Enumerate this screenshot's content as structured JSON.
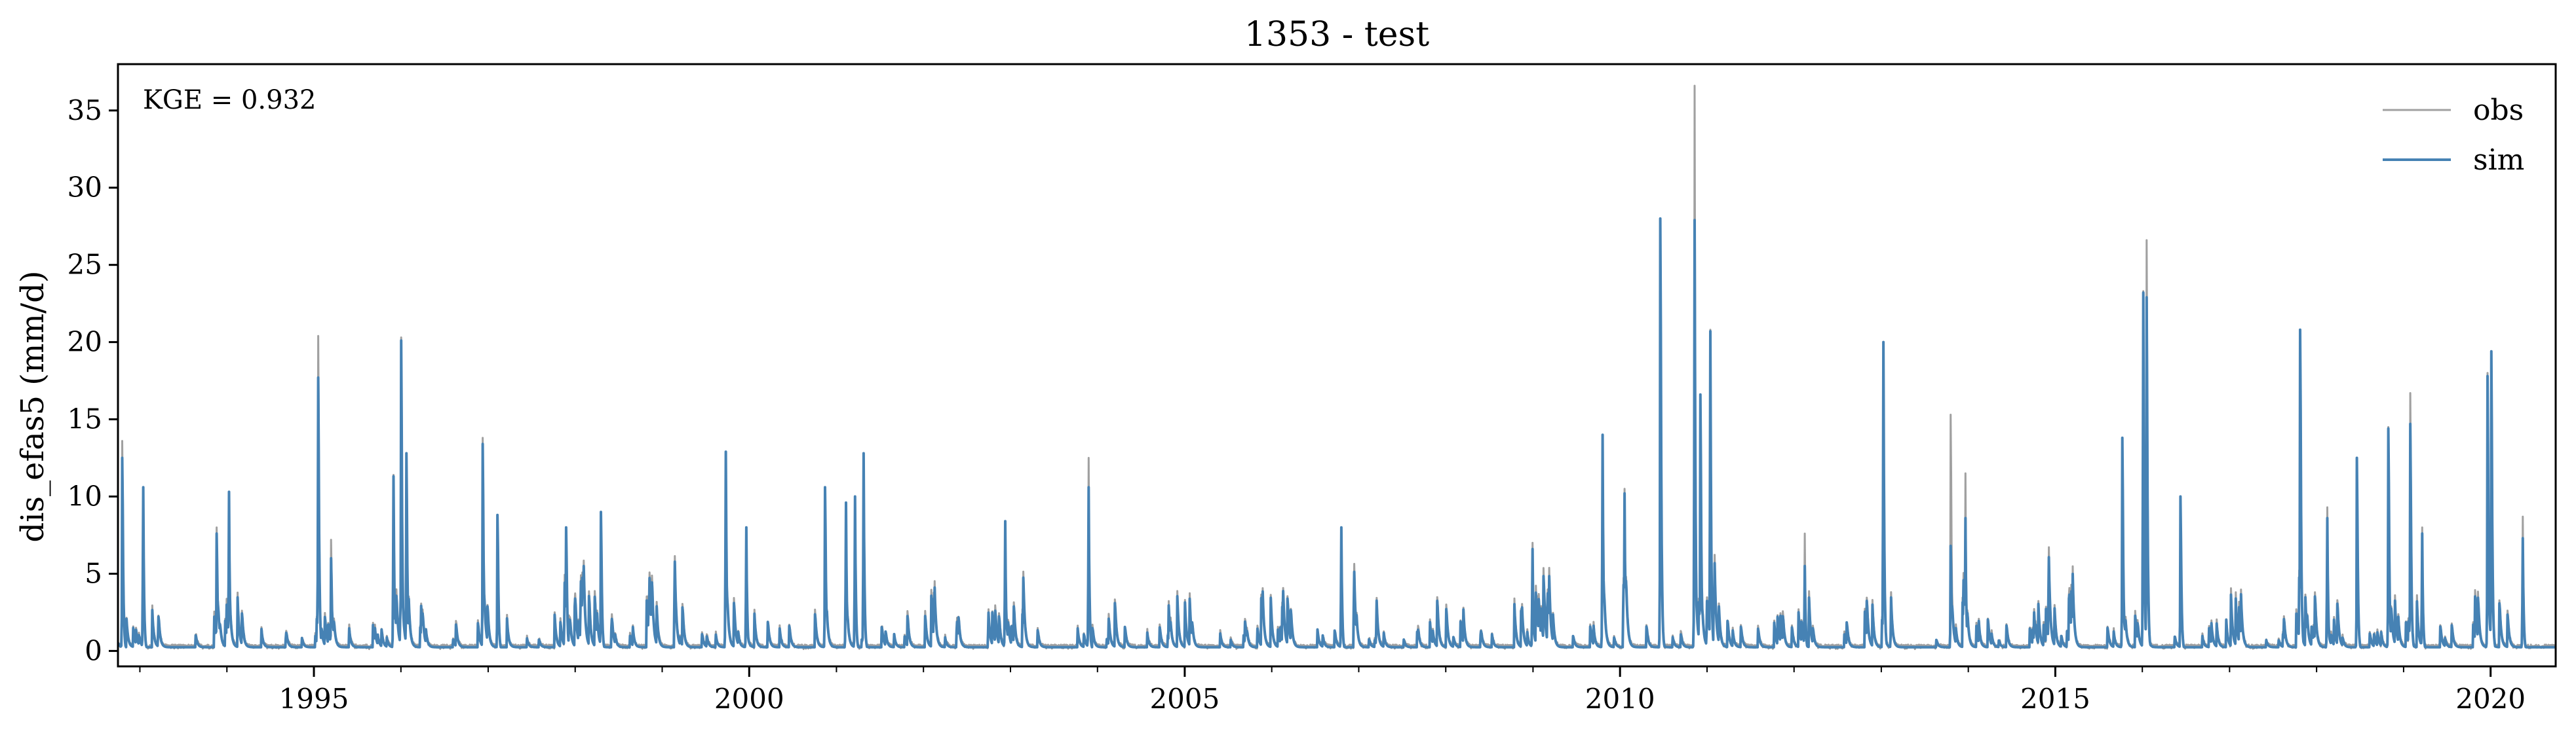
{
  "chart_data": {
    "type": "line",
    "title": "1353 - test",
    "xlabel": "",
    "ylabel": "dis_efas5 (mm/d)",
    "xlim": [
      "1992-10-01",
      "2020-09-30"
    ],
    "ylim": [
      -1,
      38
    ],
    "xticks": [
      {
        "label": "1995",
        "date": "1995-01-01"
      },
      {
        "label": "2000",
        "date": "2000-01-01"
      },
      {
        "label": "2005",
        "date": "2005-01-01"
      },
      {
        "label": "2010",
        "date": "2010-01-01"
      },
      {
        "label": "2015",
        "date": "2015-01-01"
      },
      {
        "label": "2020",
        "date": "2020-01-01"
      }
    ],
    "yticks": [
      0,
      5,
      10,
      15,
      20,
      25,
      30,
      35
    ],
    "annotation": "KGE = 0.932",
    "legend_position": "top-right",
    "grid": false,
    "series": [
      {
        "name": "obs",
        "color": "#a0a0a0",
        "peaks": [
          [
            "1992-10-20",
            13.6
          ],
          [
            "1993-01-15",
            10.6
          ],
          [
            "1993-11-20",
            8.0
          ],
          [
            "1994-01-10",
            10.3
          ],
          [
            "1995-01-20",
            20.4
          ],
          [
            "1995-03-15",
            7.2
          ],
          [
            "1995-12-01",
            11.4
          ],
          [
            "1996-01-03",
            20.3
          ],
          [
            "1996-01-25",
            12.8
          ],
          [
            "1996-12-10",
            13.8
          ],
          [
            "1997-02-10",
            8.8
          ],
          [
            "1997-11-25",
            8.0
          ],
          [
            "1998-04-20",
            9.0
          ],
          [
            "1999-09-25",
            12.9
          ],
          [
            "1999-12-20",
            8.0
          ],
          [
            "2000-11-15",
            10.6
          ],
          [
            "2001-02-10",
            9.6
          ],
          [
            "2001-03-20",
            10.0
          ],
          [
            "2001-04-25",
            12.8
          ],
          [
            "2002-12-10",
            8.4
          ],
          [
            "2003-11-25",
            12.5
          ],
          [
            "2006-10-20",
            8.0
          ],
          [
            "2008-12-30",
            7.0
          ],
          [
            "2009-10-20",
            14.0
          ],
          [
            "2010-01-20",
            10.5
          ],
          [
            "2010-06-20",
            28.0
          ],
          [
            "2010-11-10",
            36.6
          ],
          [
            "2010-12-05",
            16.6
          ],
          [
            "2011-01-15",
            20.8
          ],
          [
            "2012-02-15",
            7.6
          ],
          [
            "2013-01-10",
            20.0
          ],
          [
            "2013-10-20",
            15.3
          ],
          [
            "2013-12-20",
            11.5
          ],
          [
            "2015-10-10",
            13.8
          ],
          [
            "2016-01-05",
            23.3
          ],
          [
            "2016-01-20",
            26.6
          ],
          [
            "2016-06-10",
            10.0
          ],
          [
            "2017-10-25",
            20.8
          ],
          [
            "2018-02-15",
            9.3
          ],
          [
            "2018-06-20",
            12.5
          ],
          [
            "2018-10-30",
            14.5
          ],
          [
            "2019-01-30",
            16.7
          ],
          [
            "2019-03-20",
            8.0
          ],
          [
            "2019-12-20",
            18.0
          ],
          [
            "2020-01-05",
            19.4
          ],
          [
            "2020-05-15",
            8.7
          ]
        ]
      },
      {
        "name": "sim",
        "color": "#4682b4",
        "peaks": [
          [
            "1992-10-20",
            12.5
          ],
          [
            "1993-01-15",
            10.6
          ],
          [
            "1993-11-20",
            7.6
          ],
          [
            "1994-01-10",
            10.3
          ],
          [
            "1995-01-20",
            17.7
          ],
          [
            "1995-03-15",
            6.0
          ],
          [
            "1995-12-01",
            11.3
          ],
          [
            "1996-01-03",
            20.1
          ],
          [
            "1996-01-25",
            12.8
          ],
          [
            "1996-12-10",
            13.4
          ],
          [
            "1997-02-10",
            8.8
          ],
          [
            "1997-11-25",
            8.0
          ],
          [
            "1998-04-20",
            9.0
          ],
          [
            "1999-09-25",
            12.9
          ],
          [
            "1999-12-20",
            8.0
          ],
          [
            "2000-11-15",
            10.6
          ],
          [
            "2001-02-10",
            9.6
          ],
          [
            "2001-03-20",
            10.0
          ],
          [
            "2001-04-25",
            12.8
          ],
          [
            "2002-12-10",
            8.4
          ],
          [
            "2003-11-25",
            10.6
          ],
          [
            "2006-10-20",
            8.0
          ],
          [
            "2008-12-30",
            6.6
          ],
          [
            "2009-10-20",
            14.0
          ],
          [
            "2010-01-20",
            10.2
          ],
          [
            "2010-06-20",
            28.0
          ],
          [
            "2010-11-10",
            27.9
          ],
          [
            "2010-12-05",
            16.6
          ],
          [
            "2011-01-15",
            20.7
          ],
          [
            "2012-02-15",
            5.5
          ],
          [
            "2013-01-10",
            20.0
          ],
          [
            "2013-10-20",
            6.8
          ],
          [
            "2013-12-20",
            8.6
          ],
          [
            "2015-10-10",
            13.8
          ],
          [
            "2016-01-05",
            23.2
          ],
          [
            "2016-01-20",
            22.9
          ],
          [
            "2016-06-10",
            10.0
          ],
          [
            "2017-10-25",
            20.8
          ],
          [
            "2018-02-15",
            8.6
          ],
          [
            "2018-06-20",
            12.5
          ],
          [
            "2018-10-30",
            14.4
          ],
          [
            "2019-01-30",
            14.7
          ],
          [
            "2019-03-20",
            7.6
          ],
          [
            "2019-12-20",
            17.8
          ],
          [
            "2020-01-05",
            19.4
          ],
          [
            "2020-05-15",
            7.3
          ]
        ]
      }
    ]
  }
}
